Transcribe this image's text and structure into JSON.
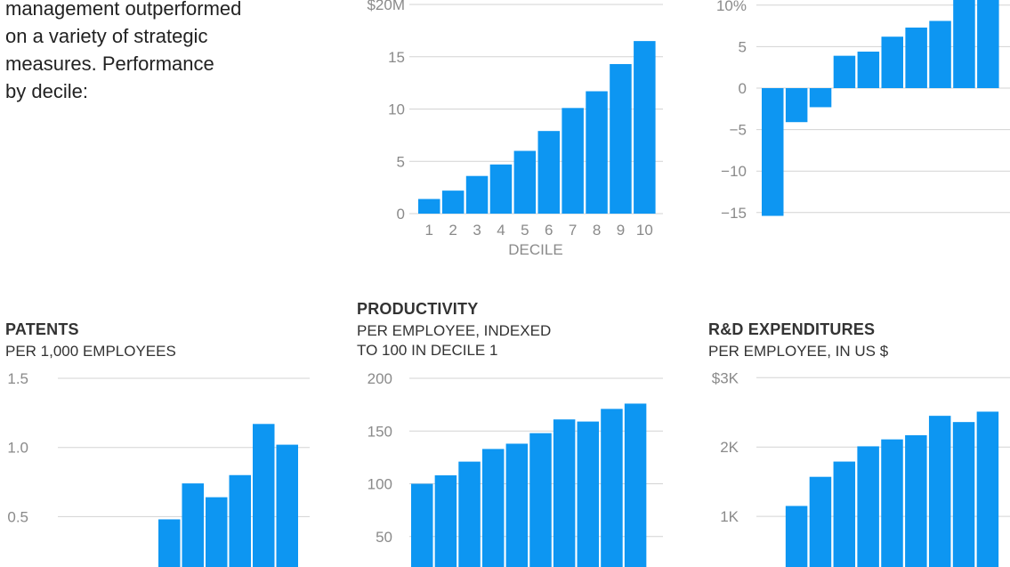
{
  "intro": {
    "lines": [
      "management outperformed",
      "on a variety of strategic",
      "measures. Performance",
      "by decile:"
    ]
  },
  "chart_data": [
    {
      "id": "revenue",
      "type": "bar",
      "title": "",
      "subtitle_lines": [],
      "categories": [
        "1",
        "2",
        "3",
        "4",
        "5",
        "6",
        "7",
        "8",
        "9",
        "10"
      ],
      "values": [
        1.4,
        2.2,
        3.6,
        4.7,
        6.0,
        7.9,
        10.1,
        11.7,
        14.3,
        16.5
      ],
      "yticks": [
        {
          "value": 20,
          "label": "$20M"
        },
        {
          "value": 15,
          "label": "15"
        },
        {
          "value": 10,
          "label": "10"
        },
        {
          "value": 5,
          "label": "5"
        },
        {
          "value": 0,
          "label": "0"
        }
      ],
      "xlabel": "DECILE",
      "show_xticks": true,
      "ylim": [
        0,
        20
      ],
      "grid": true,
      "color": "#0d96f2"
    },
    {
      "id": "growth",
      "type": "bar",
      "title": "",
      "subtitle_lines": [],
      "categories": [
        "1",
        "2",
        "3",
        "4",
        "5",
        "6",
        "7",
        "8",
        "9",
        "10"
      ],
      "values": [
        -15.4,
        -4.1,
        -2.3,
        3.9,
        4.4,
        6.2,
        7.3,
        8.1,
        11.5,
        11.5
      ],
      "yticks": [
        {
          "value": 10,
          "label": "10%"
        },
        {
          "value": 5,
          "label": "5"
        },
        {
          "value": 0,
          "label": "0"
        },
        {
          "value": -5,
          "label": "−5"
        },
        {
          "value": -10,
          "label": "−10"
        },
        {
          "value": -15,
          "label": "−15"
        }
      ],
      "xlabel": "",
      "show_xticks": false,
      "ylim": [
        -15,
        10
      ],
      "grid": true,
      "color": "#0d96f2"
    },
    {
      "id": "patents",
      "type": "bar",
      "title": "PATENTS",
      "subtitle_lines": [
        "PER 1,000 EMPLOYEES"
      ],
      "categories": [
        "1",
        "2",
        "3",
        "4",
        "5",
        "6",
        "7",
        "8",
        "9",
        "10"
      ],
      "values": [
        0.0,
        0.0,
        0.0,
        0.02,
        0.48,
        0.74,
        0.64,
        0.8,
        1.17,
        1.02
      ],
      "yticks": [
        {
          "value": 1.5,
          "label": "1.5"
        },
        {
          "value": 1.0,
          "label": "1.0"
        },
        {
          "value": 0.5,
          "label": "0.5"
        }
      ],
      "xlabel": "",
      "show_xticks": false,
      "ylim": [
        0,
        1.5
      ],
      "grid": true,
      "color": "#0d96f2"
    },
    {
      "id": "productivity",
      "type": "bar",
      "title": "PRODUCTIVITY",
      "subtitle_lines": [
        "PER EMPLOYEE, INDEXED",
        "TO 100 IN DECILE 1"
      ],
      "categories": [
        "1",
        "2",
        "3",
        "4",
        "5",
        "6",
        "7",
        "8",
        "9",
        "10"
      ],
      "values": [
        100,
        108,
        121,
        133,
        138,
        148,
        161,
        159,
        171,
        176
      ],
      "yticks": [
        {
          "value": 200,
          "label": "200"
        },
        {
          "value": 150,
          "label": "150"
        },
        {
          "value": 100,
          "label": "100"
        },
        {
          "value": 50,
          "label": "50"
        }
      ],
      "xlabel": "",
      "show_xticks": false,
      "ylim": [
        0,
        200
      ],
      "grid": true,
      "color": "#0d96f2"
    },
    {
      "id": "rd",
      "type": "bar",
      "title": "R&D EXPENDITURES",
      "subtitle_lines": [
        "PER EMPLOYEE, IN US $"
      ],
      "categories": [
        "1",
        "2",
        "3",
        "4",
        "5",
        "6",
        "7",
        "8",
        "9",
        "10"
      ],
      "values": [
        0,
        1150,
        1570,
        1790,
        2010,
        2110,
        2170,
        2450,
        2360,
        2510
      ],
      "yticks": [
        {
          "value": 3000,
          "label": "$3K"
        },
        {
          "value": 2000,
          "label": "2K"
        },
        {
          "value": 1000,
          "label": "1K"
        }
      ],
      "xlabel": "",
      "show_xticks": false,
      "ylim": [
        0,
        3000
      ],
      "grid": true,
      "color": "#0d96f2"
    }
  ]
}
